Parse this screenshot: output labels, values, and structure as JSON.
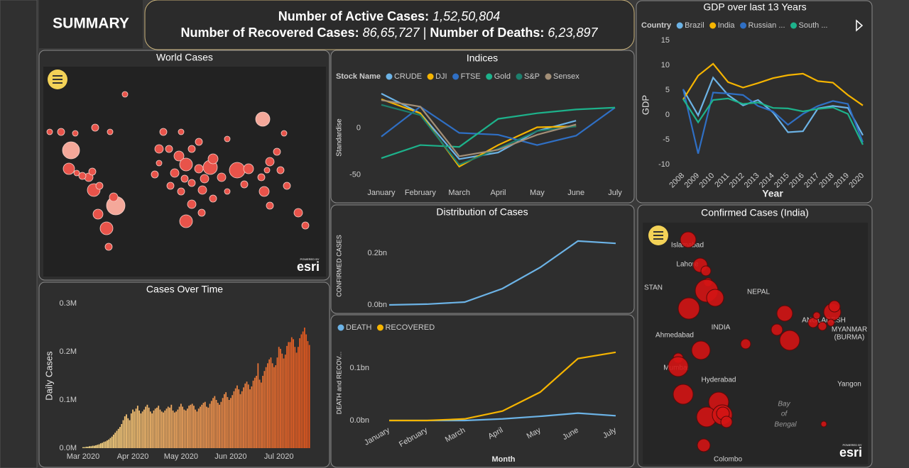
{
  "header": {
    "title": "SUMMARY"
  },
  "kpi": {
    "active_label": "Number of Active Cases:",
    "active_value": "1,52,50,804",
    "recovered_label": "Number of Recovered Cases:",
    "recovered_value": "86,65,727",
    "separator": "|",
    "deaths_label": "Number of Deaths:",
    "deaths_value": "6,23,897"
  },
  "maps": [
    {
      "title": "World Cases",
      "powered": "POWERED BY",
      "logo": "esri"
    },
    {
      "title": "Confirmed Cases (India)",
      "powered": "POWERED BY",
      "logo": "esri",
      "labels": [
        "Islamabad",
        "Lahore",
        "STAN",
        "NEPAL",
        "INDIA",
        "Ahmedabad",
        "Mumbai",
        "Hyderabad",
        "ANGLADESH",
        "MYANMAR",
        "(BURMA)",
        "Yangon",
        "Bay",
        "of",
        "Bengal",
        "Colombo"
      ]
    }
  ],
  "chart_data": [
    {
      "type": "line",
      "title": "Indices",
      "legend_title": "Stock Name",
      "y_label": "Standardise",
      "categories": [
        "January",
        "February",
        "March",
        "April",
        "May",
        "June",
        "July"
      ],
      "ylim": [
        -60,
        40
      ],
      "yticks": [
        -50,
        0
      ],
      "grid": false,
      "series": [
        {
          "name": "CRUDE",
          "color": "#6cb3e6",
          "values": [
            37,
            16,
            -33,
            -26,
            -3,
            8,
            null
          ]
        },
        {
          "name": "DJI",
          "color": "#f5b400",
          "values": [
            31,
            16,
            -41,
            -18,
            1,
            2,
            null
          ]
        },
        {
          "name": "FTSE",
          "color": "#2f6fc4",
          "values": [
            -9,
            23,
            -5,
            -7,
            -18,
            -8,
            22
          ]
        },
        {
          "name": "Gold",
          "color": "#1db28b",
          "values": [
            -32,
            -18,
            -20,
            10,
            16,
            20,
            22
          ]
        },
        {
          "name": "S&P",
          "color": "#1d7f6d",
          "values": [
            25,
            14,
            -39,
            -22,
            -3,
            2,
            null
          ]
        },
        {
          "name": "Sensex",
          "color": "#a38f77",
          "values": [
            30,
            23,
            -30,
            -23,
            -7,
            4,
            null
          ]
        }
      ]
    },
    {
      "type": "line",
      "title": "Distribution of Cases",
      "y_label": "CONFIRMED CASES",
      "categories": [
        null,
        null,
        null,
        null,
        null,
        null,
        null
      ],
      "ylim": [
        -0.003,
        0.27
      ],
      "yticks": [
        {
          "value": 0,
          "label": "0.0bn"
        },
        {
          "value": 0.2,
          "label": "0.2bn"
        }
      ],
      "grid": false,
      "series": [
        {
          "color": "#6cb3e6",
          "values": [
            0,
            0.003,
            0.011,
            0.063,
            0.145,
            0.247,
            0.238
          ]
        }
      ]
    },
    {
      "type": "line",
      "x_label": "Month",
      "y_label": "DEATH and RECOV...",
      "categories": [
        "January",
        "February",
        "March",
        "April",
        "May",
        "June",
        "July"
      ],
      "ylim": [
        -0.005,
        0.14
      ],
      "yticks": [
        {
          "value": 0,
          "label": "0.0bn"
        },
        {
          "value": 0.1,
          "label": "0.1bn"
        }
      ],
      "grid": false,
      "series": [
        {
          "name": "DEATH",
          "color": "#6cb3e6",
          "values": [
            0,
            0,
            0,
            0.003,
            0.008,
            0.014,
            0.009
          ]
        },
        {
          "name": "RECOVERED",
          "color": "#f5b400",
          "values": [
            0,
            0,
            0.003,
            0.018,
            0.054,
            0.118,
            0.13
          ]
        }
      ]
    },
    {
      "type": "line",
      "title": "GDP over last 13 Years",
      "legend_title": "Country",
      "x_label": "Year",
      "y_label": "GDP",
      "categories": [
        "2008",
        "2009",
        "2010",
        "2011",
        "2012",
        "2013",
        "2014",
        "2015",
        "2016",
        "2017",
        "2018",
        "2019",
        "2020"
      ],
      "ylim": [
        -10,
        15
      ],
      "yticks": [
        -10,
        -5,
        0,
        5,
        10,
        15
      ],
      "grid": false,
      "series": [
        {
          "name": "Brazil",
          "color": "#6cb3e6",
          "values": [
            5.1,
            -0.1,
            7.5,
            4,
            1.9,
            3,
            0.5,
            -3.5,
            -3.3,
            1.3,
            1.8,
            1.4,
            -4.1
          ]
        },
        {
          "name": "India",
          "color": "#f5b400",
          "values": [
            3.1,
            7.9,
            10.3,
            6.6,
            5.5,
            6.4,
            7.4,
            8,
            8.3,
            6.8,
            6.5,
            4,
            1.9
          ]
        },
        {
          "name": "Russian ...",
          "color": "#2f6fc4",
          "values": [
            5.2,
            -7.8,
            4.5,
            4.3,
            4,
            1.8,
            0.7,
            -2,
            0.2,
            1.8,
            2.8,
            2.2,
            -5.5
          ]
        },
        {
          "name": "South ...",
          "color": "#1db28b",
          "values": [
            3.2,
            -1.5,
            3,
            3.3,
            2.2,
            2.5,
            1.4,
            1.3,
            0.7,
            1.2,
            1.5,
            0.2,
            -6
          ]
        }
      ]
    },
    {
      "type": "bar",
      "title": "Cases Over Time",
      "y_label": "Daily Cases",
      "ylim": [
        0,
        0.3
      ],
      "yticks": [
        {
          "value": 0,
          "label": "0.0M"
        },
        {
          "value": 0.1,
          "label": "0.1M"
        },
        {
          "value": 0.2,
          "label": "0.2M"
        },
        {
          "value": 0.3,
          "label": "0.3M"
        }
      ],
      "grid": false,
      "color_scale": [
        "#f7dc8a",
        "#e0561e"
      ],
      "categories": [
        "Mar 2020",
        null,
        null,
        null,
        null,
        null,
        null,
        null,
        null,
        null,
        null,
        null,
        null,
        null,
        null,
        null,
        null,
        null,
        null,
        null,
        null,
        null,
        null,
        null,
        null,
        null,
        null,
        null,
        null,
        null,
        null,
        "Apr 2020",
        null,
        null,
        null,
        null,
        null,
        null,
        null,
        null,
        null,
        null,
        null,
        null,
        null,
        null,
        null,
        null,
        null,
        null,
        null,
        null,
        null,
        null,
        null,
        null,
        null,
        null,
        null,
        null,
        null,
        "May 2020",
        null,
        null,
        null,
        null,
        null,
        null,
        null,
        null,
        null,
        null,
        null,
        null,
        null,
        null,
        null,
        null,
        null,
        null,
        null,
        null,
        null,
        null,
        null,
        null,
        null,
        null,
        null,
        null,
        null,
        null,
        "Jun 2020",
        null,
        null,
        null,
        null,
        null,
        null,
        null,
        null,
        null,
        null,
        null,
        null,
        null,
        null,
        null,
        null,
        null,
        null,
        null,
        null,
        null,
        null,
        null,
        null,
        null,
        null,
        null,
        null,
        null,
        "Jul 2020",
        null,
        null,
        null,
        null,
        null,
        null,
        null,
        null,
        null,
        null,
        null,
        null,
        null,
        null,
        null,
        null,
        null,
        null,
        null
      ],
      "values": [
        0.002,
        0.002,
        0.003,
        0.003,
        0.004,
        0.004,
        0.005,
        0.005,
        0.006,
        0.007,
        0.008,
        0.01,
        0.011,
        0.013,
        0.014,
        0.016,
        0.018,
        0.021,
        0.024,
        0.028,
        0.032,
        0.036,
        0.04,
        0.044,
        0.05,
        0.058,
        0.066,
        0.07,
        0.062,
        0.058,
        0.072,
        0.08,
        0.076,
        0.082,
        0.088,
        0.078,
        0.072,
        0.076,
        0.08,
        0.086,
        0.09,
        0.084,
        0.076,
        0.072,
        0.078,
        0.082,
        0.084,
        0.088,
        0.08,
        0.076,
        0.074,
        0.078,
        0.082,
        0.086,
        0.084,
        0.09,
        0.078,
        0.074,
        0.076,
        0.08,
        0.086,
        0.092,
        0.086,
        0.08,
        0.078,
        0.082,
        0.088,
        0.09,
        0.092,
        0.088,
        0.08,
        0.076,
        0.082,
        0.086,
        0.09,
        0.094,
        0.096,
        0.086,
        0.084,
        0.092,
        0.098,
        0.104,
        0.108,
        0.1,
        0.094,
        0.09,
        0.096,
        0.104,
        0.112,
        0.116,
        0.106,
        0.1,
        0.104,
        0.11,
        0.118,
        0.124,
        0.13,
        0.122,
        0.112,
        0.118,
        0.126,
        0.134,
        0.138,
        0.132,
        0.122,
        0.128,
        0.14,
        0.146,
        0.15,
        0.176,
        0.142,
        0.136,
        0.15,
        0.16,
        0.168,
        0.176,
        0.184,
        0.188,
        0.176,
        0.168,
        0.172,
        0.188,
        0.21,
        0.206,
        0.196,
        0.186,
        0.194,
        0.212,
        0.22,
        0.22,
        0.23,
        0.226,
        0.21,
        0.198,
        0.21,
        0.228,
        0.236,
        0.242,
        0.25,
        0.236,
        0.222,
        0.214
      ]
    }
  ]
}
